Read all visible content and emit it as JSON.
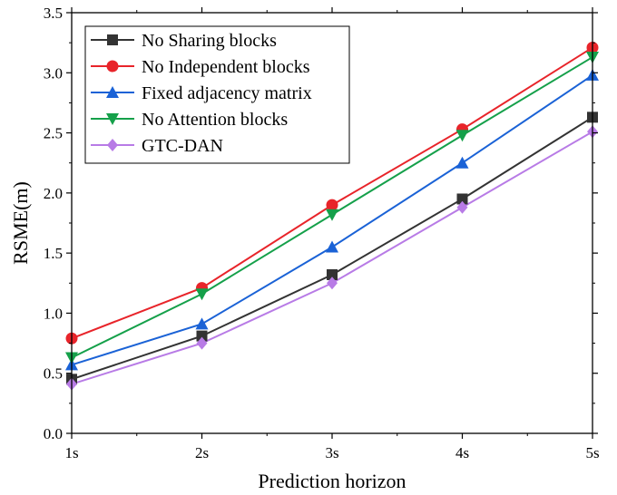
{
  "chart_data": {
    "type": "line",
    "title": "",
    "xlabel": "Prediction horizon",
    "ylabel": "RSME(m)",
    "categories": [
      "1s",
      "2s",
      "3s",
      "4s",
      "5s"
    ],
    "ylim": [
      0.0,
      3.5
    ],
    "yticks": [
      "0.0",
      "0.5",
      "1.0",
      "1.5",
      "2.0",
      "2.5",
      "3.0",
      "3.5"
    ],
    "grid": false,
    "legend_position": "top-left",
    "series": [
      {
        "name": "No Sharing blocks",
        "values": [
          0.45,
          0.81,
          1.32,
          1.95,
          2.63
        ],
        "color": "#333333",
        "marker": "square"
      },
      {
        "name": "No Independent blocks",
        "values": [
          0.79,
          1.21,
          1.9,
          2.53,
          3.21
        ],
        "color": "#e8242a",
        "marker": "circle"
      },
      {
        "name": "Fixed adjacency matrix",
        "values": [
          0.57,
          0.91,
          1.55,
          2.25,
          2.98
        ],
        "color": "#1a62d6",
        "marker": "triangle-up"
      },
      {
        "name": "No Attention blocks",
        "values": [
          0.63,
          1.16,
          1.82,
          2.48,
          3.13
        ],
        "color": "#15a04a",
        "marker": "triangle-down"
      },
      {
        "name": "GTC-DAN",
        "values": [
          0.41,
          0.75,
          1.25,
          1.88,
          2.51
        ],
        "color": "#b87be6",
        "marker": "diamond"
      }
    ]
  }
}
